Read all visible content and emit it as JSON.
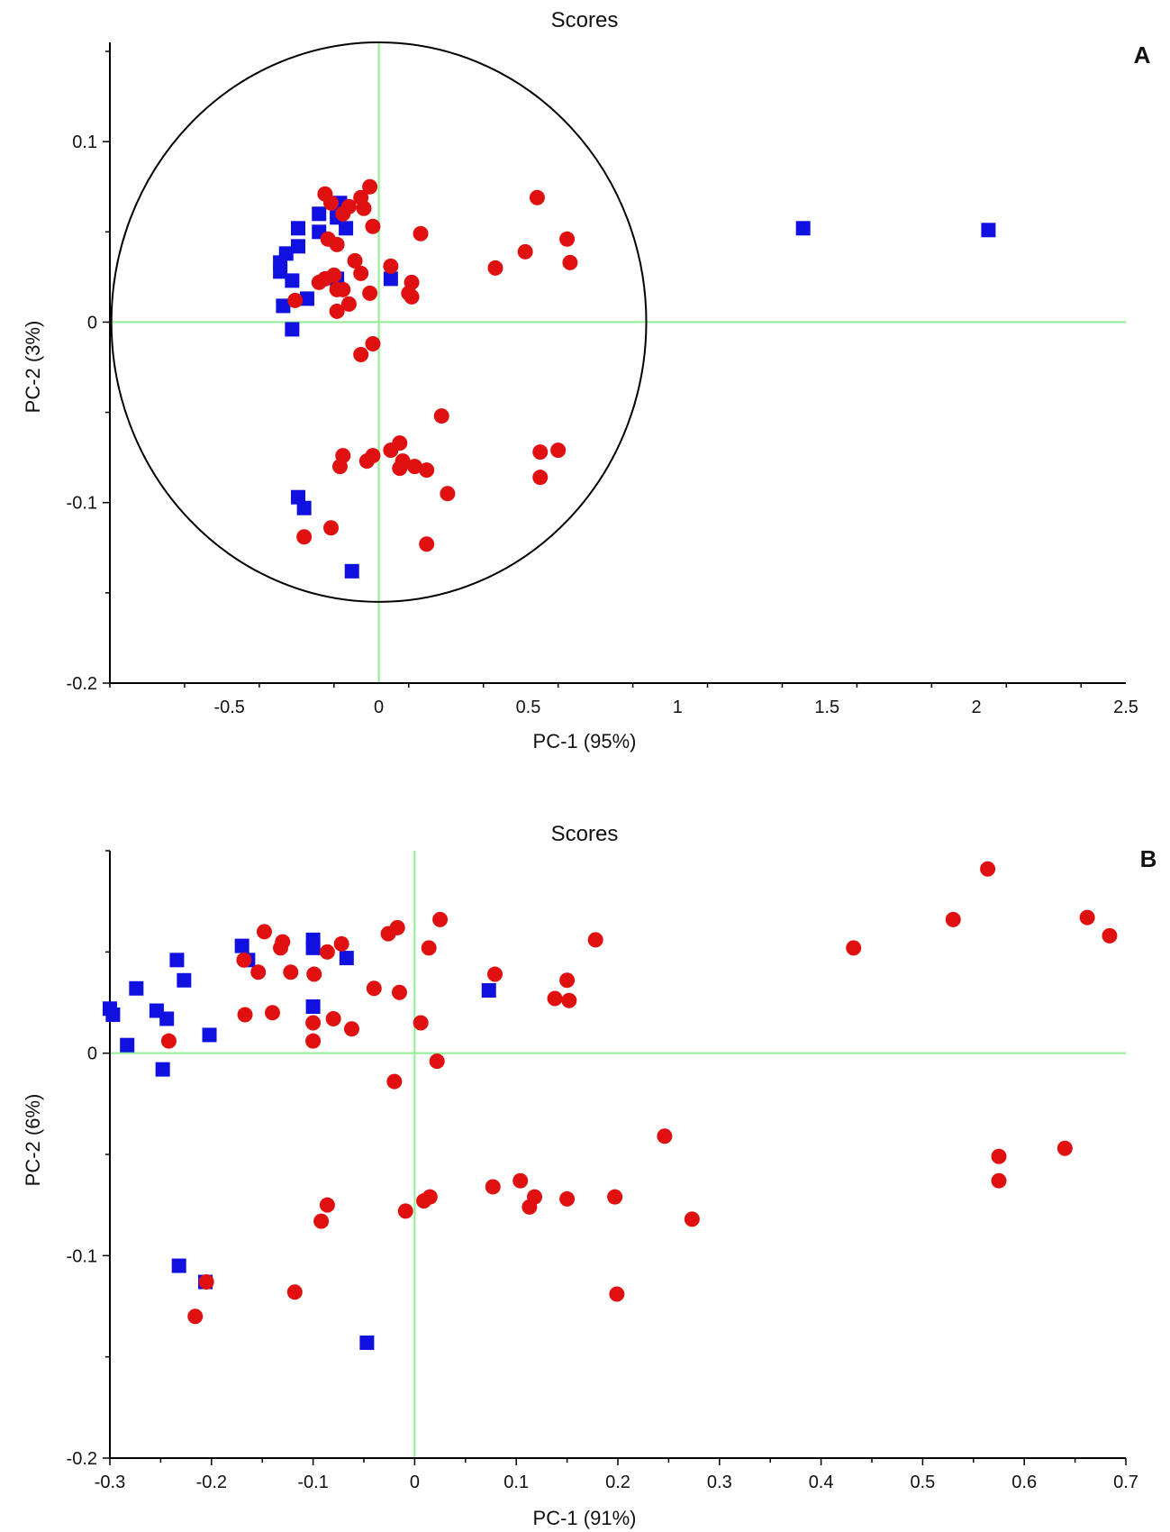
{
  "colors": {
    "group1": "#1010e0",
    "group2": "#e01010",
    "refline": "#90ee90",
    "axis": "#000000",
    "ellipse": "#000000"
  },
  "chart_data": [
    {
      "type": "scatter",
      "panel": "A",
      "title": "Scores",
      "xlabel": "PC-1 (95%)",
      "ylabel": "PC-2 (3%)",
      "xlim": [
        -0.9,
        2.5
      ],
      "ylim": [
        -0.2,
        0.155
      ],
      "xticks": [
        -0.5,
        0,
        0.5,
        1,
        1.5,
        2,
        2.5
      ],
      "xtick_labels": [
        "-0.5",
        "0",
        "0.5",
        "1",
        "1.5",
        "2",
        "2.5"
      ],
      "yticks": [
        -0.2,
        -0.1,
        0,
        0.1
      ],
      "ytick_labels": [
        "-0.2",
        "-0.1",
        "0",
        "0.1"
      ],
      "ellipse": {
        "rx": 0.895,
        "ry": 0.155
      },
      "reference_lines": {
        "x": 0,
        "y": 0
      },
      "series": [
        {
          "name": "squares",
          "marker": "square",
          "color": "#1010e0",
          "points": [
            [
              -0.13,
              0.066
            ],
            [
              -0.2,
              0.06
            ],
            [
              -0.11,
              0.052
            ],
            [
              -0.2,
              0.05
            ],
            [
              -0.14,
              0.058
            ],
            [
              -0.27,
              0.052
            ],
            [
              -0.27,
              0.042
            ],
            [
              -0.31,
              0.038
            ],
            [
              -0.33,
              0.033
            ],
            [
              -0.33,
              0.028
            ],
            [
              -0.29,
              0.023
            ],
            [
              -0.14,
              0.024
            ],
            [
              0.04,
              0.024
            ],
            [
              -0.24,
              0.013
            ],
            [
              -0.32,
              0.009
            ],
            [
              -0.29,
              -0.004
            ],
            [
              -0.27,
              -0.097
            ],
            [
              -0.25,
              -0.103
            ],
            [
              -0.09,
              -0.138
            ],
            [
              1.42,
              0.052
            ],
            [
              2.04,
              0.051
            ]
          ]
        },
        {
          "name": "circles",
          "marker": "circle",
          "color": "#e01010",
          "points": [
            [
              -0.18,
              0.071
            ],
            [
              -0.03,
              0.075
            ],
            [
              -0.06,
              0.069
            ],
            [
              -0.16,
              0.066
            ],
            [
              -0.05,
              0.063
            ],
            [
              -0.1,
              0.064
            ],
            [
              -0.12,
              0.06
            ],
            [
              -0.02,
              0.053
            ],
            [
              -0.17,
              0.046
            ],
            [
              -0.14,
              0.043
            ],
            [
              0.14,
              0.049
            ],
            [
              0.53,
              0.069
            ],
            [
              0.63,
              0.046
            ],
            [
              0.49,
              0.039
            ],
            [
              0.64,
              0.033
            ],
            [
              0.39,
              0.03
            ],
            [
              -0.08,
              0.034
            ],
            [
              0.04,
              0.031
            ],
            [
              -0.06,
              0.027
            ],
            [
              -0.15,
              0.026
            ],
            [
              -0.18,
              0.024
            ],
            [
              -0.2,
              0.022
            ],
            [
              0.11,
              0.022
            ],
            [
              -0.14,
              0.018
            ],
            [
              -0.12,
              0.018
            ],
            [
              -0.03,
              0.016
            ],
            [
              0.1,
              0.016
            ],
            [
              0.11,
              0.014
            ],
            [
              -0.28,
              0.012
            ],
            [
              -0.1,
              0.01
            ],
            [
              -0.14,
              0.006
            ],
            [
              -0.02,
              -0.012
            ],
            [
              -0.06,
              -0.018
            ],
            [
              0.21,
              -0.052
            ],
            [
              0.07,
              -0.067
            ],
            [
              0.04,
              -0.071
            ],
            [
              -0.12,
              -0.074
            ],
            [
              -0.02,
              -0.074
            ],
            [
              0.54,
              -0.072
            ],
            [
              0.6,
              -0.071
            ],
            [
              -0.04,
              -0.077
            ],
            [
              0.08,
              -0.077
            ],
            [
              0.12,
              -0.08
            ],
            [
              -0.13,
              -0.08
            ],
            [
              0.07,
              -0.081
            ],
            [
              0.16,
              -0.082
            ],
            [
              0.54,
              -0.086
            ],
            [
              0.23,
              -0.095
            ],
            [
              -0.16,
              -0.114
            ],
            [
              -0.25,
              -0.119
            ],
            [
              0.16,
              -0.123
            ]
          ]
        }
      ]
    },
    {
      "type": "scatter",
      "panel": "B",
      "title": "Scores",
      "xlabel": "PC-1 (91%)",
      "ylabel": "PC-2 (6%)",
      "xlim": [
        -0.3,
        0.7
      ],
      "ylim": [
        -0.2,
        0.1
      ],
      "xticks": [
        -0.3,
        -0.2,
        -0.1,
        0,
        0.1,
        0.2,
        0.3,
        0.4,
        0.5,
        0.6,
        0.7
      ],
      "xtick_labels": [
        "-0.3",
        "-0.2",
        "-0.1",
        "0",
        "0.1",
        "0.2",
        "0.3",
        "0.4",
        "0.5",
        "0.6",
        "0.7"
      ],
      "yticks": [
        -0.2,
        -0.1,
        0
      ],
      "ytick_labels": [
        "-0.2",
        "-0.1",
        "0"
      ],
      "reference_lines": {
        "x": 0,
        "y": 0
      },
      "series": [
        {
          "name": "squares",
          "marker": "square",
          "color": "#1010e0",
          "points": [
            [
              -0.1,
              0.056
            ],
            [
              -0.1,
              0.052
            ],
            [
              -0.17,
              0.053
            ],
            [
              -0.164,
              0.046
            ],
            [
              -0.067,
              0.047
            ],
            [
              -0.234,
              0.046
            ],
            [
              -0.227,
              0.036
            ],
            [
              -0.274,
              0.032
            ],
            [
              0.073,
              0.031
            ],
            [
              -0.1,
              0.023
            ],
            [
              -0.3,
              0.022
            ],
            [
              -0.297,
              0.019
            ],
            [
              -0.254,
              0.021
            ],
            [
              -0.244,
              0.017
            ],
            [
              -0.202,
              0.009
            ],
            [
              -0.283,
              0.004
            ],
            [
              -0.248,
              -0.008
            ],
            [
              -0.232,
              -0.105
            ],
            [
              -0.206,
              -0.113
            ],
            [
              -0.047,
              -0.143
            ]
          ]
        },
        {
          "name": "circles",
          "marker": "circle",
          "color": "#e01010",
          "points": [
            [
              0.564,
              0.091
            ],
            [
              0.53,
              0.066
            ],
            [
              0.662,
              0.067
            ],
            [
              0.684,
              0.058
            ],
            [
              0.432,
              0.052
            ],
            [
              0.178,
              0.056
            ],
            [
              0.025,
              0.066
            ],
            [
              -0.017,
              0.062
            ],
            [
              -0.026,
              0.059
            ],
            [
              0.014,
              0.052
            ],
            [
              -0.148,
              0.06
            ],
            [
              -0.13,
              0.055
            ],
            [
              -0.132,
              0.052
            ],
            [
              -0.072,
              0.054
            ],
            [
              -0.086,
              0.05
            ],
            [
              -0.168,
              0.046
            ],
            [
              -0.154,
              0.04
            ],
            [
              -0.122,
              0.04
            ],
            [
              -0.099,
              0.039
            ],
            [
              0.079,
              0.039
            ],
            [
              0.15,
              0.036
            ],
            [
              0.138,
              0.027
            ],
            [
              0.152,
              0.026
            ],
            [
              -0.04,
              0.032
            ],
            [
              -0.015,
              0.03
            ],
            [
              -0.167,
              0.019
            ],
            [
              -0.14,
              0.02
            ],
            [
              -0.1,
              0.015
            ],
            [
              -0.08,
              0.017
            ],
            [
              0.006,
              0.015
            ],
            [
              -0.062,
              0.012
            ],
            [
              -0.1,
              0.006
            ],
            [
              -0.242,
              0.006
            ],
            [
              0.022,
              -0.004
            ],
            [
              -0.02,
              -0.014
            ],
            [
              0.246,
              -0.041
            ],
            [
              0.575,
              -0.051
            ],
            [
              0.64,
              -0.047
            ],
            [
              0.575,
              -0.063
            ],
            [
              0.104,
              -0.063
            ],
            [
              0.077,
              -0.066
            ],
            [
              0.118,
              -0.071
            ],
            [
              0.113,
              -0.076
            ],
            [
              0.15,
              -0.072
            ],
            [
              0.197,
              -0.071
            ],
            [
              0.015,
              -0.071
            ],
            [
              0.009,
              -0.073
            ],
            [
              -0.086,
              -0.075
            ],
            [
              -0.092,
              -0.083
            ],
            [
              -0.009,
              -0.078
            ],
            [
              0.273,
              -0.082
            ],
            [
              -0.205,
              -0.113
            ],
            [
              -0.118,
              -0.118
            ],
            [
              0.199,
              -0.119
            ],
            [
              -0.216,
              -0.13
            ]
          ]
        }
      ]
    }
  ]
}
